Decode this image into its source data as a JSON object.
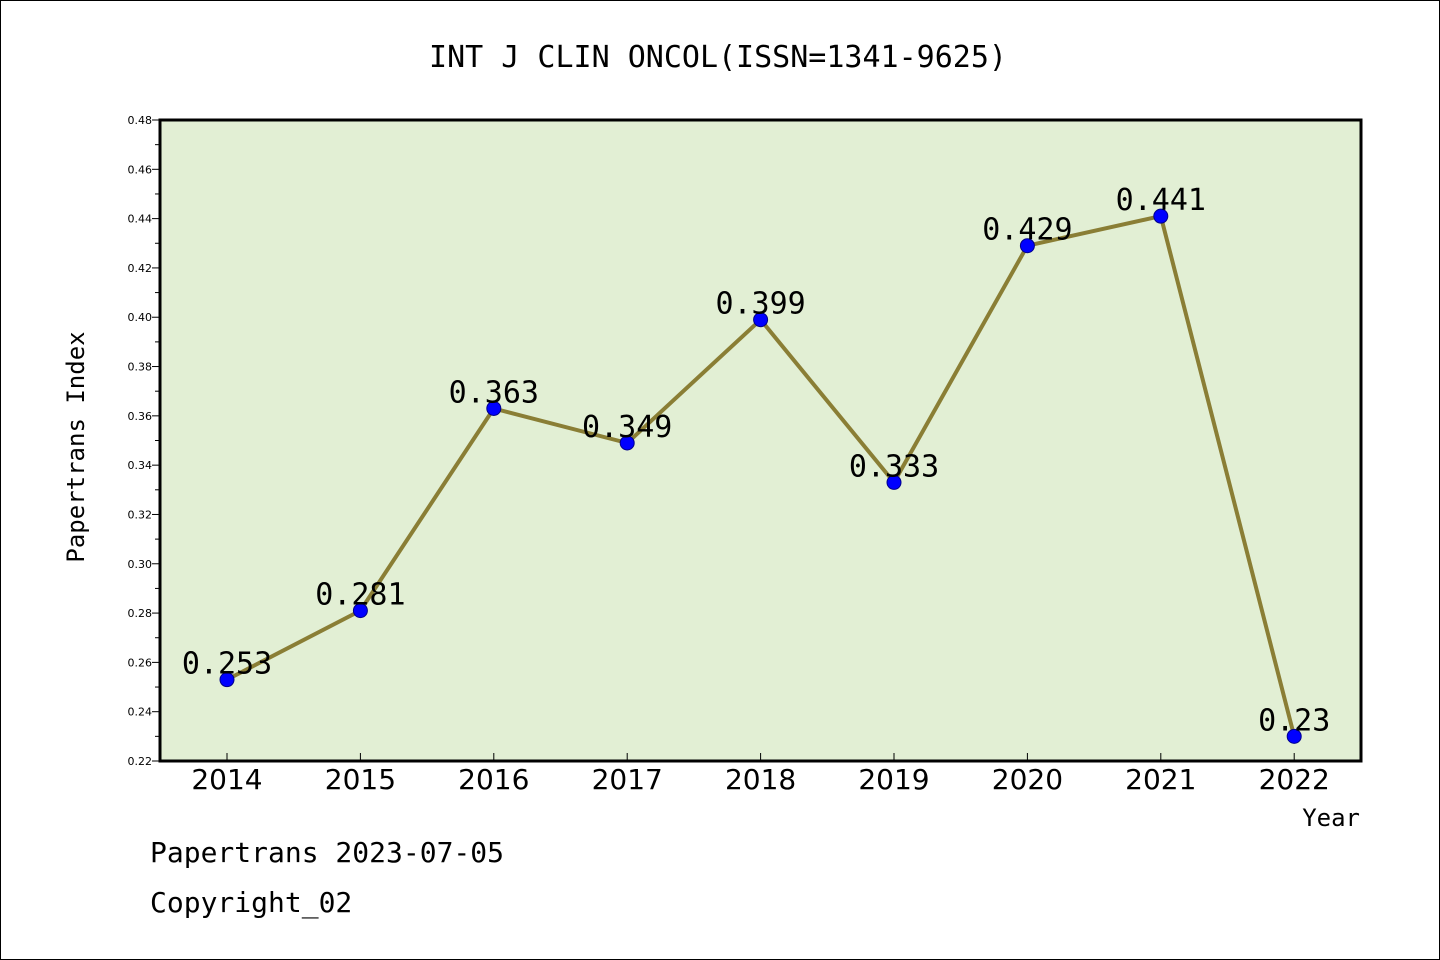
{
  "chart_data": {
    "type": "line",
    "title": "INT J CLIN ONCOL(ISSN=1341-9625)",
    "xlabel": "Year",
    "ylabel": "Papertrans Index",
    "categories": [
      "2014",
      "2015",
      "2016",
      "2017",
      "2018",
      "2019",
      "2020",
      "2021",
      "2022"
    ],
    "series": [
      {
        "values": [
          0.253,
          0.281,
          0.363,
          0.349,
          0.399,
          0.333,
          0.429,
          0.441,
          0.23
        ],
        "data_labels": [
          "0.253",
          "0.281",
          "0.363",
          "0.349",
          "0.399",
          "0.333",
          "0.429",
          "0.441",
          "0.23"
        ]
      }
    ],
    "ylim": [
      0.22,
      0.48
    ],
    "y_ticks": [
      "0.22",
      "0.24",
      "0.26",
      "0.28",
      "0.30",
      "0.32",
      "0.34",
      "0.36",
      "0.38",
      "0.40",
      "0.42",
      "0.44",
      "0.46",
      "0.48"
    ],
    "grid": false,
    "legend": "none",
    "colors": {
      "plot_background": "#e2efd4",
      "line": "#8a7e35",
      "marker": "#0000ff",
      "axis": "#000000"
    }
  },
  "footer": {
    "line1": "Papertrans 2023-07-05",
    "line2": "Copyright_02"
  }
}
